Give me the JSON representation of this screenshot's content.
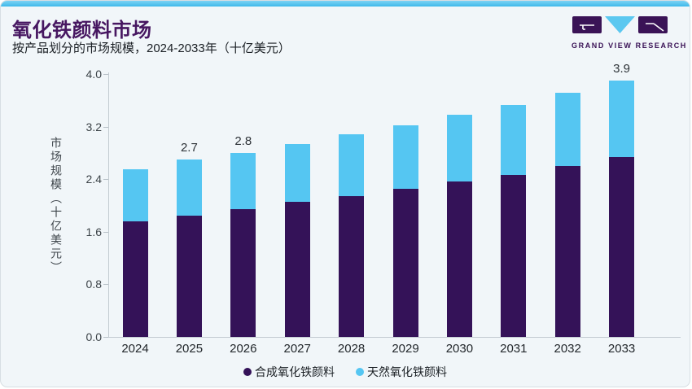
{
  "header": {
    "title": "氧化铁颜料市场",
    "subtitle": "按产品划分的市场规模，2024-2033年（十亿美元）"
  },
  "logo": {
    "text": "GRAND VIEW RESEARCH",
    "purple": "#3a1356",
    "blue": "#5bc8f0"
  },
  "colors": {
    "accent_bar": "#49bfec",
    "card_background": "#f1f6f9",
    "title": "#471761",
    "axis": "#c3cbd1"
  },
  "chart_data": {
    "type": "bar",
    "stacked": true,
    "title": "氧化铁颜料市场",
    "subtitle": "按产品划分的市场规模，2024-2033年（十亿美元）",
    "xlabel": "",
    "ylabel": "市场规模（十亿美元）",
    "ylim": [
      0,
      4.0
    ],
    "yticks": [
      "0.0",
      "0.8",
      "1.6",
      "2.4",
      "3.2",
      "4.0"
    ],
    "grid": false,
    "legend_position": "bottom",
    "categories": [
      "2024",
      "2025",
      "2026",
      "2027",
      "2028",
      "2029",
      "2030",
      "2031",
      "2032",
      "2033"
    ],
    "series": [
      {
        "name": "合成氧化铁颜料",
        "color": "#341258",
        "values": [
          1.76,
          1.85,
          1.95,
          2.05,
          2.14,
          2.25,
          2.36,
          2.47,
          2.6,
          2.74
        ]
      },
      {
        "name": "天然氧化铁颜料",
        "color": "#55c6f2",
        "values": [
          0.79,
          0.85,
          0.85,
          0.88,
          0.94,
          0.97,
          1.02,
          1.06,
          1.11,
          1.16
        ]
      }
    ],
    "totals": [
      2.55,
      2.7,
      2.8,
      2.93,
      3.08,
      3.22,
      3.38,
      3.53,
      3.71,
      3.9
    ],
    "value_labels": [
      {
        "category": "2025",
        "text": "2.7"
      },
      {
        "category": "2026",
        "text": "2.8"
      },
      {
        "category": "2033",
        "text": "3.9"
      }
    ]
  }
}
